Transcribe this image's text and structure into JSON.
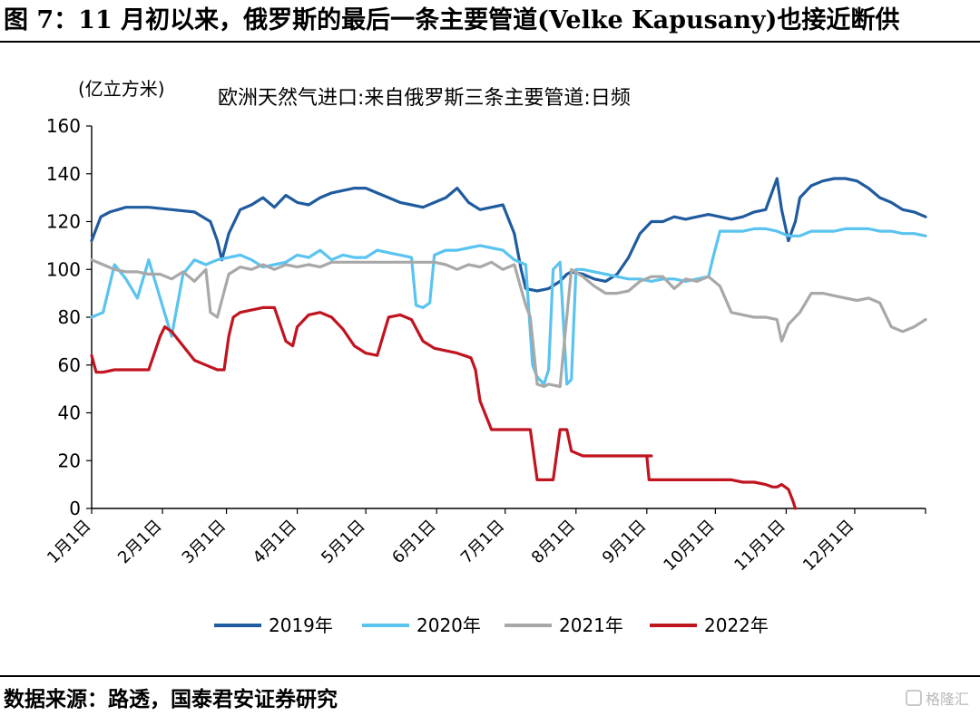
{
  "figure": {
    "title": "图 7：11 月初以来，俄罗斯的最后一条主要管道(Velke Kapusany)也接近断供",
    "source": "数据来源：路透，国泰君安证券研究",
    "watermark": "格隆汇"
  },
  "chart_data": {
    "type": "line",
    "title": "欧洲天然气进口:来自俄罗斯三条主要管道:日频",
    "ylabel": "(亿立方米)",
    "xlabel": "",
    "ylim": [
      0,
      160
    ],
    "yticks": [
      0,
      20,
      40,
      60,
      80,
      100,
      120,
      140,
      160
    ],
    "xlim": [
      0,
      365
    ],
    "xticks": [
      {
        "day": 0,
        "label": "1月1日"
      },
      {
        "day": 31,
        "label": "2月1日"
      },
      {
        "day": 59,
        "label": "3月1日"
      },
      {
        "day": 90,
        "label": "4月1日"
      },
      {
        "day": 120,
        "label": "5月1日"
      },
      {
        "day": 151,
        "label": "6月1日"
      },
      {
        "day": 181,
        "label": "7月1日"
      },
      {
        "day": 212,
        "label": "8月1日"
      },
      {
        "day": 243,
        "label": "9月1日"
      },
      {
        "day": 273,
        "label": "10月1日"
      },
      {
        "day": 304,
        "label": "11月1日"
      },
      {
        "day": 334,
        "label": "12月1日"
      }
    ],
    "grid": false,
    "legend_position": "bottom",
    "series": [
      {
        "name": "2019年",
        "color": "#1f5b9e",
        "x": [
          0,
          4,
          8,
          15,
          25,
          35,
          45,
          52,
          55,
          57,
          60,
          65,
          70,
          75,
          80,
          85,
          90,
          95,
          100,
          105,
          110,
          115,
          120,
          125,
          130,
          135,
          140,
          145,
          150,
          155,
          160,
          165,
          170,
          175,
          180,
          185,
          188,
          190,
          195,
          200,
          205,
          208,
          210,
          215,
          220,
          225,
          230,
          235,
          240,
          245,
          250,
          255,
          260,
          265,
          270,
          275,
          280,
          285,
          290,
          295,
          300,
          302,
          305,
          308,
          310,
          315,
          320,
          325,
          330,
          335,
          340,
          345,
          350,
          355,
          360,
          365
        ],
        "values": [
          112,
          122,
          124,
          126,
          126,
          125,
          124,
          120,
          112,
          104,
          115,
          125,
          127,
          130,
          126,
          131,
          128,
          127,
          130,
          132,
          133,
          134,
          134,
          132,
          130,
          128,
          127,
          126,
          128,
          130,
          134,
          128,
          125,
          126,
          127,
          115,
          100,
          92,
          91,
          92,
          95,
          98,
          99,
          98,
          96,
          95,
          98,
          105,
          115,
          120,
          120,
          122,
          121,
          122,
          123,
          122,
          121,
          122,
          124,
          125,
          138,
          125,
          112,
          120,
          130,
          135,
          137,
          138,
          138,
          137,
          134,
          130,
          128,
          125,
          124,
          122
        ]
      },
      {
        "name": "2020年",
        "color": "#5ac3ef",
        "x": [
          0,
          5,
          10,
          15,
          20,
          25,
          30,
          35,
          40,
          45,
          50,
          55,
          60,
          65,
          70,
          75,
          80,
          85,
          90,
          95,
          100,
          105,
          110,
          115,
          120,
          125,
          130,
          135,
          140,
          142,
          145,
          148,
          150,
          155,
          160,
          165,
          170,
          175,
          180,
          185,
          190,
          193,
          195,
          198,
          200,
          202,
          205,
          208,
          210,
          212,
          215,
          220,
          225,
          230,
          235,
          240,
          245,
          250,
          255,
          260,
          265,
          270,
          272,
          275,
          280,
          285,
          290,
          295,
          300,
          305,
          310,
          315,
          320,
          325,
          330,
          335,
          340,
          345,
          350,
          355,
          360,
          365
        ],
        "values": [
          80,
          82,
          102,
          96,
          88,
          104,
          88,
          72,
          98,
          104,
          102,
          104,
          105,
          106,
          104,
          101,
          102,
          103,
          106,
          105,
          108,
          104,
          106,
          105,
          105,
          108,
          107,
          106,
          105,
          85,
          84,
          86,
          106,
          108,
          108,
          109,
          110,
          109,
          108,
          104,
          102,
          60,
          55,
          52,
          58,
          100,
          103,
          52,
          54,
          100,
          100,
          99,
          98,
          97,
          96,
          96,
          95,
          96,
          96,
          95,
          96,
          97,
          105,
          116,
          116,
          116,
          117,
          117,
          116,
          114,
          114,
          116,
          116,
          116,
          117,
          117,
          117,
          116,
          116,
          115,
          115,
          114
        ]
      },
      {
        "name": "2021年",
        "color": "#a8a8a8",
        "x": [
          0,
          5,
          10,
          15,
          20,
          25,
          30,
          35,
          40,
          45,
          50,
          52,
          55,
          60,
          65,
          70,
          75,
          80,
          85,
          90,
          95,
          100,
          105,
          110,
          115,
          120,
          125,
          130,
          135,
          140,
          145,
          150,
          155,
          160,
          165,
          170,
          175,
          180,
          185,
          190,
          192,
          195,
          198,
          200,
          205,
          210,
          215,
          220,
          225,
          230,
          235,
          240,
          245,
          250,
          255,
          260,
          265,
          270,
          275,
          280,
          285,
          290,
          295,
          300,
          302,
          305,
          310,
          315,
          320,
          325,
          330,
          335,
          340,
          345,
          350,
          355,
          360,
          365
        ],
        "values": [
          104,
          102,
          100,
          99,
          99,
          98,
          98,
          96,
          99,
          95,
          100,
          82,
          80,
          98,
          101,
          100,
          102,
          100,
          102,
          101,
          102,
          101,
          103,
          103,
          103,
          103,
          103,
          103,
          103,
          103,
          103,
          103,
          102,
          100,
          102,
          101,
          103,
          100,
          102,
          85,
          80,
          52,
          51,
          52,
          51,
          100,
          97,
          93,
          90,
          90,
          91,
          95,
          97,
          97,
          92,
          96,
          95,
          97,
          93,
          82,
          81,
          80,
          80,
          79,
          70,
          77,
          82,
          90,
          90,
          89,
          88,
          87,
          88,
          86,
          76,
          74,
          76,
          79
        ]
      },
      {
        "name": "2022年",
        "color": "#c0141f",
        "x": [
          0,
          2,
          5,
          10,
          15,
          20,
          25,
          30,
          32,
          35,
          40,
          45,
          50,
          55,
          58,
          60,
          62,
          65,
          70,
          75,
          80,
          85,
          88,
          90,
          95,
          100,
          105,
          110,
          115,
          120,
          125,
          130,
          135,
          140,
          145,
          150,
          155,
          160,
          163,
          166,
          168,
          170,
          175,
          180,
          185,
          190,
          192,
          195,
          200,
          202,
          205,
          208,
          210,
          215,
          220,
          225,
          230,
          235,
          240,
          245,
          243,
          244,
          248,
          255,
          260,
          265,
          270,
          275,
          280,
          285,
          290,
          295,
          298,
          300,
          302,
          305,
          307,
          308
        ],
        "values": [
          64,
          57,
          57,
          58,
          58,
          58,
          58,
          72,
          76,
          74,
          68,
          62,
          60,
          58,
          58,
          72,
          80,
          82,
          83,
          84,
          84,
          70,
          68,
          76,
          81,
          82,
          80,
          75,
          68,
          65,
          64,
          80,
          81,
          79,
          70,
          67,
          66,
          65,
          64,
          63,
          58,
          45,
          33,
          33,
          33,
          33,
          33,
          12,
          12,
          12,
          33,
          33,
          24,
          22,
          22,
          22,
          22,
          22,
          22,
          22,
          22,
          12,
          12,
          12,
          12,
          12,
          12,
          12,
          12,
          11,
          11,
          10,
          9,
          9,
          10,
          8,
          3,
          0
        ]
      }
    ]
  }
}
